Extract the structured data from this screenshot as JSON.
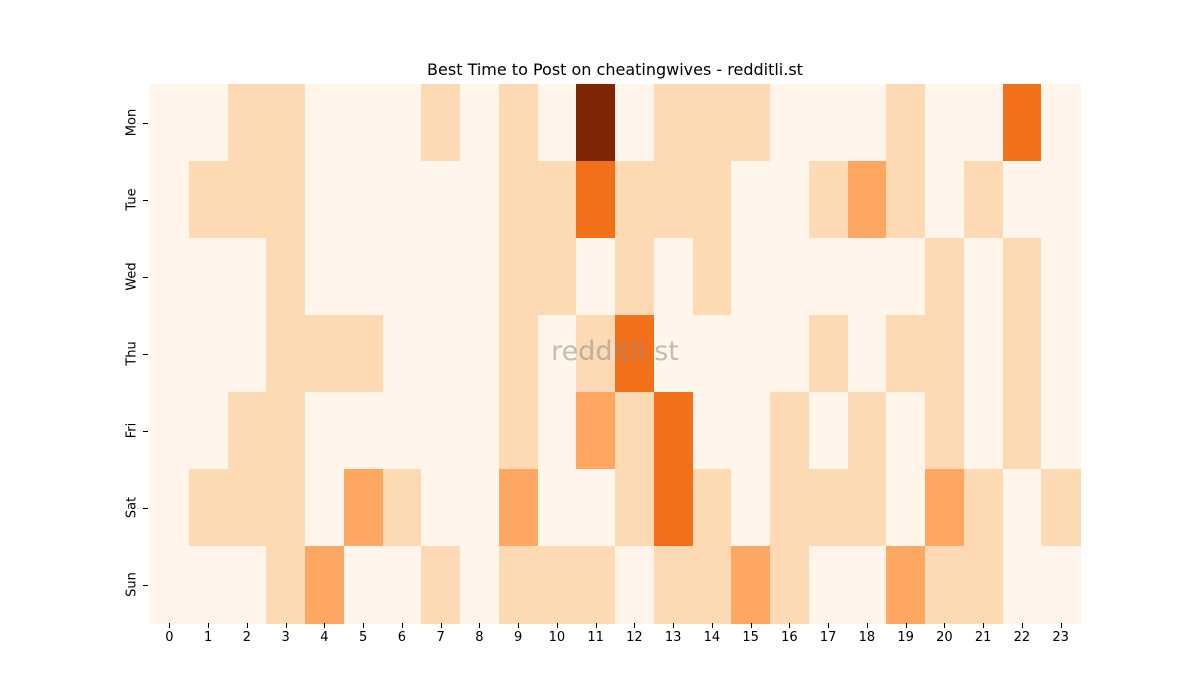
{
  "chart_data": {
    "type": "heatmap",
    "title": "Best Time to Post on cheatingwives - redditli.st",
    "xlabel": "",
    "ylabel": "",
    "x": [
      "0",
      "1",
      "2",
      "3",
      "4",
      "5",
      "6",
      "7",
      "8",
      "9",
      "10",
      "11",
      "12",
      "13",
      "14",
      "15",
      "16",
      "17",
      "18",
      "19",
      "20",
      "21",
      "22",
      "23"
    ],
    "y": [
      "Mon",
      "Tue",
      "Wed",
      "Thu",
      "Fri",
      "Sat",
      "Sun"
    ],
    "values": [
      [
        0,
        0,
        1,
        1,
        0,
        0,
        0,
        1,
        0,
        1,
        0,
        4,
        0,
        1,
        1,
        1,
        0,
        0,
        0,
        1,
        0,
        0,
        3,
        0
      ],
      [
        0,
        1,
        1,
        1,
        0,
        0,
        0,
        0,
        0,
        1,
        1,
        3,
        1,
        1,
        1,
        0,
        0,
        1,
        2,
        1,
        0,
        1,
        0,
        0
      ],
      [
        0,
        0,
        0,
        1,
        0,
        0,
        0,
        0,
        0,
        1,
        1,
        0,
        1,
        0,
        1,
        0,
        0,
        0,
        0,
        0,
        1,
        0,
        1,
        0
      ],
      [
        0,
        0,
        0,
        1,
        1,
        1,
        0,
        0,
        0,
        1,
        0,
        1,
        3,
        0,
        0,
        0,
        0,
        1,
        0,
        1,
        1,
        0,
        1,
        0
      ],
      [
        0,
        0,
        1,
        1,
        0,
        0,
        0,
        0,
        0,
        1,
        0,
        2,
        1,
        3,
        0,
        0,
        1,
        0,
        1,
        0,
        1,
        0,
        1,
        0
      ],
      [
        0,
        1,
        1,
        1,
        0,
        2,
        1,
        0,
        0,
        2,
        0,
        0,
        1,
        3,
        1,
        0,
        1,
        1,
        1,
        0,
        2,
        1,
        0,
        1
      ],
      [
        0,
        0,
        0,
        1,
        2,
        0,
        0,
        1,
        0,
        1,
        1,
        1,
        0,
        1,
        1,
        2,
        1,
        0,
        0,
        2,
        1,
        1,
        0,
        0
      ]
    ],
    "colormap": "Oranges",
    "color_levels": [
      "#fff5eb",
      "#fdd9b4",
      "#fda762",
      "#f3701b",
      "#7f2704"
    ],
    "grid": false,
    "colorbar": false
  },
  "watermark": "redditli.st"
}
